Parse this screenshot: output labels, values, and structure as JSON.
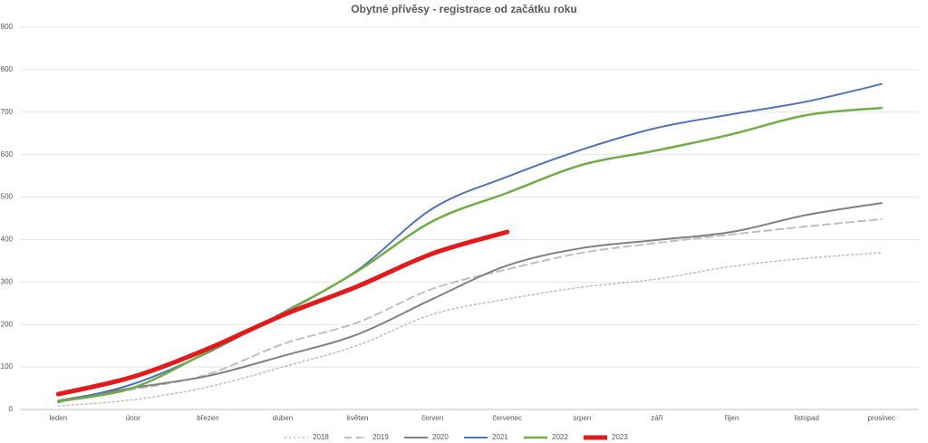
{
  "chart_data": {
    "type": "line",
    "title": "Obytné přívěsy - registrace od začátku roku",
    "categories": [
      "leden",
      "únor",
      "březen",
      "duben",
      "květen",
      "červen",
      "červenec",
      "srpen",
      "září",
      "říjen",
      "listopad",
      "prosinec"
    ],
    "series": [
      {
        "name": "2018",
        "color": "#bfbfbf",
        "style": "dotted",
        "linewidth": 1.5,
        "values": [
          8,
          23,
          53,
          100,
          151,
          224,
          260,
          288,
          307,
          337,
          356,
          369
        ]
      },
      {
        "name": "2019",
        "color": "#bfbfbf",
        "style": "dashed",
        "linewidth": 2,
        "values": [
          19,
          47,
          83,
          154,
          205,
          284,
          330,
          369,
          392,
          412,
          431,
          448
        ]
      },
      {
        "name": "2020",
        "color": "#808080",
        "style": "solid",
        "linewidth": 2,
        "values": [
          21,
          51,
          79,
          126,
          177,
          260,
          339,
          380,
          399,
          418,
          458,
          486
        ]
      },
      {
        "name": "2021",
        "color": "#4f75b3",
        "style": "solid",
        "linewidth": 2,
        "values": [
          17,
          60,
          134,
          228,
          328,
          473,
          548,
          612,
          663,
          695,
          725,
          766
        ]
      },
      {
        "name": "2022",
        "color": "#70ad47",
        "style": "solid",
        "linewidth": 2.5,
        "values": [
          19,
          51,
          136,
          226,
          326,
          443,
          510,
          576,
          610,
          648,
          693,
          710
        ]
      },
      {
        "name": "2023",
        "color": "#e31a1c",
        "style": "solid",
        "linewidth": 5,
        "values": [
          36,
          77,
          143,
          222,
          290,
          367,
          418,
          null,
          null,
          null,
          null,
          null
        ]
      }
    ],
    "ylim": [
      0,
      900
    ],
    "yticks": [
      0,
      100,
      200,
      300,
      400,
      500,
      600,
      700,
      800,
      900
    ],
    "grid": true,
    "legend": "bottom"
  }
}
